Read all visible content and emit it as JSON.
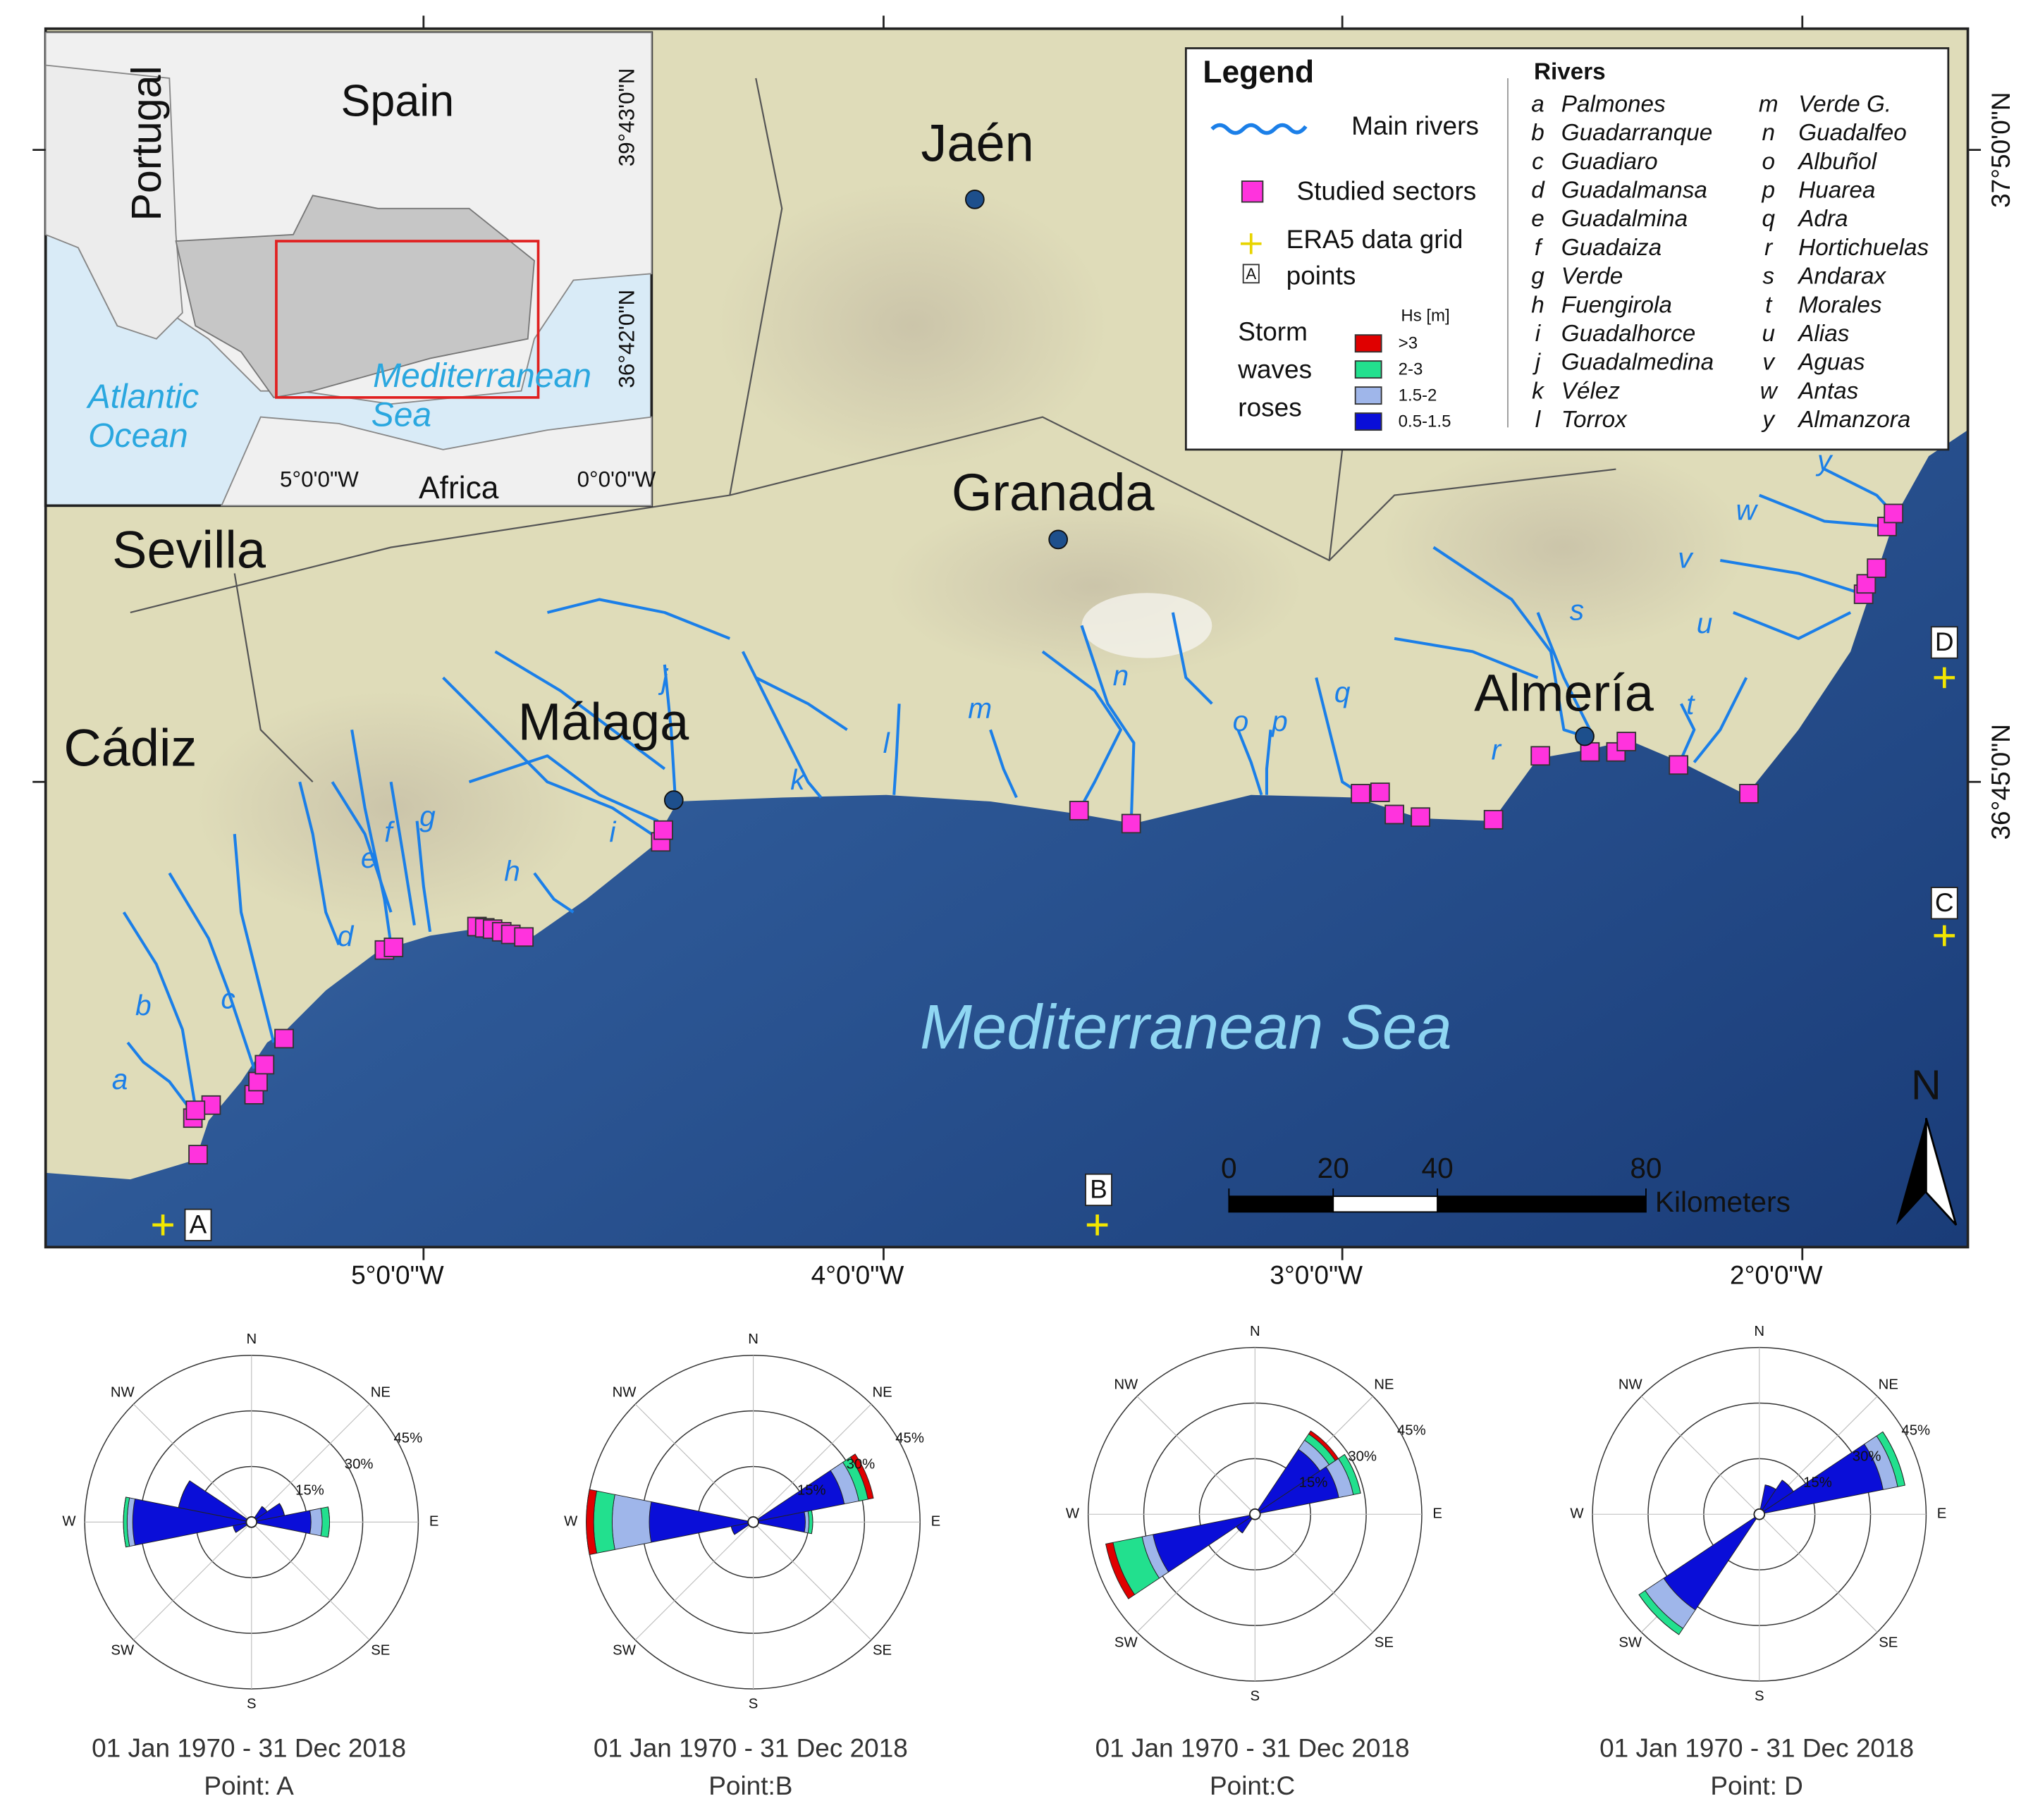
{
  "map": {
    "inset": {
      "country": "Spain",
      "neighbour": "Portugal",
      "ocean": [
        "Atlantic",
        "Ocean"
      ],
      "sea": [
        "Mediterranean",
        "Sea"
      ],
      "continent": "Africa",
      "lat_labels": [
        "39°43'0\"N",
        "36°42'0\"N"
      ],
      "lon_labels": [
        "5°0'0\"W",
        "0°0'0\"W"
      ]
    },
    "places": [
      "Jaén",
      "Granada",
      "Almería",
      "Málaga",
      "Sevilla",
      "Cádiz"
    ],
    "sea_label": "Mediterranean Sea",
    "lon_labels": [
      "5°0'0\"W",
      "4°0'0\"W",
      "3°0'0\"W",
      "2°0'0\"W"
    ],
    "lat_labels": [
      "37°50'0\"N",
      "36°45'0\"N"
    ],
    "grid_points": [
      "A",
      "B",
      "C",
      "D"
    ],
    "scale_bar": {
      "ticks": [
        0,
        20,
        40,
        80
      ],
      "unit": "Kilometers"
    },
    "north": "N"
  },
  "legend": {
    "title": "Legend",
    "main_rivers": "Main rivers",
    "studied_sectors": "Studied sectors",
    "era5": [
      "ERA5 data grid",
      "points"
    ],
    "roses": [
      "Storm",
      "waves",
      "roses"
    ],
    "hs_title": "Hs [m]",
    "classes": [
      {
        "label": ">3",
        "color": "#e00000"
      },
      {
        "label": "2-3",
        "color": "#22e08e"
      },
      {
        "label": "1.5-2",
        "color": "#9fb6ea"
      },
      {
        "label": "0.5-1.5",
        "color": "#0a0ed8"
      }
    ],
    "rivers_title": "Rivers",
    "rivers": [
      {
        "code": "a",
        "name": "Palmones"
      },
      {
        "code": "b",
        "name": "Guadarranque"
      },
      {
        "code": "c",
        "name": "Guadiaro"
      },
      {
        "code": "d",
        "name": "Guadalmansa"
      },
      {
        "code": "e",
        "name": "Guadalmina"
      },
      {
        "code": "f",
        "name": "Guadaiza"
      },
      {
        "code": "g",
        "name": "Verde"
      },
      {
        "code": "h",
        "name": "Fuengirola"
      },
      {
        "code": "i",
        "name": "Guadalhorce"
      },
      {
        "code": "j",
        "name": "Guadalmedina"
      },
      {
        "code": "k",
        "name": "Vélez"
      },
      {
        "code": "l",
        "name": "Torrox"
      },
      {
        "code": "m",
        "name": "Verde G."
      },
      {
        "code": "n",
        "name": "Guadalfeo"
      },
      {
        "code": "o",
        "name": "Albuñol"
      },
      {
        "code": "p",
        "name": "Huarea"
      },
      {
        "code": "q",
        "name": "Adra"
      },
      {
        "code": "r",
        "name": "Hortichuelas"
      },
      {
        "code": "s",
        "name": "Andarax"
      },
      {
        "code": "t",
        "name": "Morales"
      },
      {
        "code": "u",
        "name": "Alias"
      },
      {
        "code": "v",
        "name": "Aguas"
      },
      {
        "code": "w",
        "name": "Antas"
      },
      {
        "code": "y",
        "name": "Almanzora"
      }
    ]
  },
  "roses": {
    "compass": [
      "N",
      "NE",
      "E",
      "SE",
      "S",
      "SW",
      "W",
      "NW"
    ],
    "rings": [
      {
        "value": 15,
        "label": "15%"
      },
      {
        "value": 30,
        "label": "30%"
      },
      {
        "value": 45,
        "label": "45%"
      }
    ],
    "items": [
      {
        "caption": "01 Jan 1970 - 31 Dec 2018",
        "point": "Point: A",
        "petals": [
          {
            "dir": 270,
            "values": [
              0,
              1,
              1.5,
              31
            ]
          },
          {
            "dir": 292.5,
            "values": [
              0,
              0,
              0,
              19
            ]
          },
          {
            "dir": 247.5,
            "values": [
              0,
              0,
              0,
              4
            ]
          },
          {
            "dir": 90,
            "values": [
              0,
              2,
              3,
              15
            ]
          },
          {
            "dir": 67.5,
            "values": [
              0,
              0,
              0,
              8
            ]
          },
          {
            "dir": 45,
            "values": [
              0,
              0,
              0,
              4
            ]
          }
        ]
      },
      {
        "caption": "01 Jan 1970 - 31 Dec 2018",
        "point": "Point:B",
        "petals": [
          {
            "dir": 270,
            "values": [
              2,
              5,
              10,
              27
            ]
          },
          {
            "dir": 67.5,
            "values": [
              1.5,
              2.5,
              4,
              24
            ]
          },
          {
            "dir": 90,
            "values": [
              0,
              1,
              1,
              13
            ]
          },
          {
            "dir": 247.5,
            "values": [
              0,
              0,
              0,
              5
            ]
          }
        ]
      },
      {
        "caption": "01 Jan 1970 - 31 Dec 2018",
        "point": "Point:C",
        "petals": [
          {
            "dir": 247.5,
            "values": [
              2,
              8,
              3,
              27
            ]
          },
          {
            "dir": 67.5,
            "values": [
              0,
              2,
              4,
              22
            ]
          },
          {
            "dir": 45,
            "values": [
              1,
              2,
              3,
              20
            ]
          },
          {
            "dir": 225,
            "values": [
              0,
              0,
              0,
              5
            ]
          }
        ]
      },
      {
        "caption": "01 Jan 1970 - 31 Dec 2018",
        "point": "Point: D",
        "petals": [
          {
            "dir": 67.5,
            "values": [
              0,
              2,
              4,
              33
            ]
          },
          {
            "dir": 225,
            "values": [
              0,
              2,
              6,
              30
            ]
          },
          {
            "dir": 45,
            "values": [
              0,
              0,
              0,
              10
            ]
          },
          {
            "dir": 22.5,
            "values": [
              0,
              0,
              0,
              7
            ]
          }
        ]
      }
    ]
  }
}
